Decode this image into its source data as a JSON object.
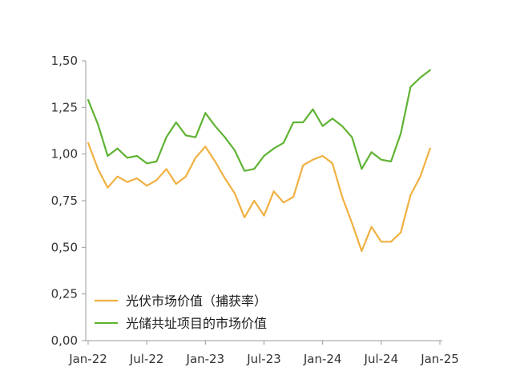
{
  "chart_data": {
    "type": "line",
    "title": "",
    "xlabel": "",
    "ylabel": "",
    "ylim": [
      0,
      1.5
    ],
    "yticks": [
      "0,00",
      "0,25",
      "0,50",
      "0,75",
      "1,00",
      "1,25",
      "1,50"
    ],
    "xticks": [
      "Jan-22",
      "Jul-22",
      "Jan-23",
      "Jul-23",
      "Jan-24",
      "Jul-24",
      "Jan-25"
    ],
    "grid": false,
    "legend": "bottom-left",
    "x": [
      "2022-01",
      "2022-02",
      "2022-03",
      "2022-04",
      "2022-05",
      "2022-06",
      "2022-07",
      "2022-08",
      "2022-09",
      "2022-10",
      "2022-11",
      "2022-12",
      "2023-01",
      "2023-02",
      "2023-03",
      "2023-04",
      "2023-05",
      "2023-06",
      "2023-07",
      "2023-08",
      "2023-09",
      "2023-10",
      "2023-11",
      "2023-12",
      "2024-01",
      "2024-02",
      "2024-03",
      "2024-04",
      "2024-05",
      "2024-06",
      "2024-07",
      "2024-08",
      "2024-09",
      "2024-10",
      "2024-11",
      "2024-12"
    ],
    "series": [
      {
        "name": "光伏市场价值（捕获率）",
        "color": "#f0b040",
        "values": [
          1.06,
          0.92,
          0.82,
          0.88,
          0.85,
          0.87,
          0.83,
          0.86,
          0.92,
          0.84,
          0.88,
          0.98,
          1.04,
          0.96,
          0.87,
          0.79,
          0.66,
          0.75,
          0.67,
          0.8,
          0.74,
          0.77,
          0.94,
          0.97,
          0.99,
          0.95,
          0.77,
          0.63,
          0.48,
          0.61,
          0.53,
          0.53,
          0.58,
          0.78,
          0.88,
          1.03
        ]
      },
      {
        "name": "光储共址项目的市场价值",
        "color": "#5fb333",
        "values": [
          1.29,
          1.16,
          0.99,
          1.03,
          0.98,
          0.99,
          0.95,
          0.96,
          1.09,
          1.17,
          1.1,
          1.09,
          1.22,
          1.15,
          1.09,
          1.02,
          0.91,
          0.92,
          0.99,
          1.03,
          1.06,
          1.17,
          1.17,
          1.24,
          1.15,
          1.19,
          1.15,
          1.09,
          0.92,
          1.01,
          0.97,
          0.96,
          1.11,
          1.36,
          1.41,
          1.45
        ]
      }
    ]
  }
}
